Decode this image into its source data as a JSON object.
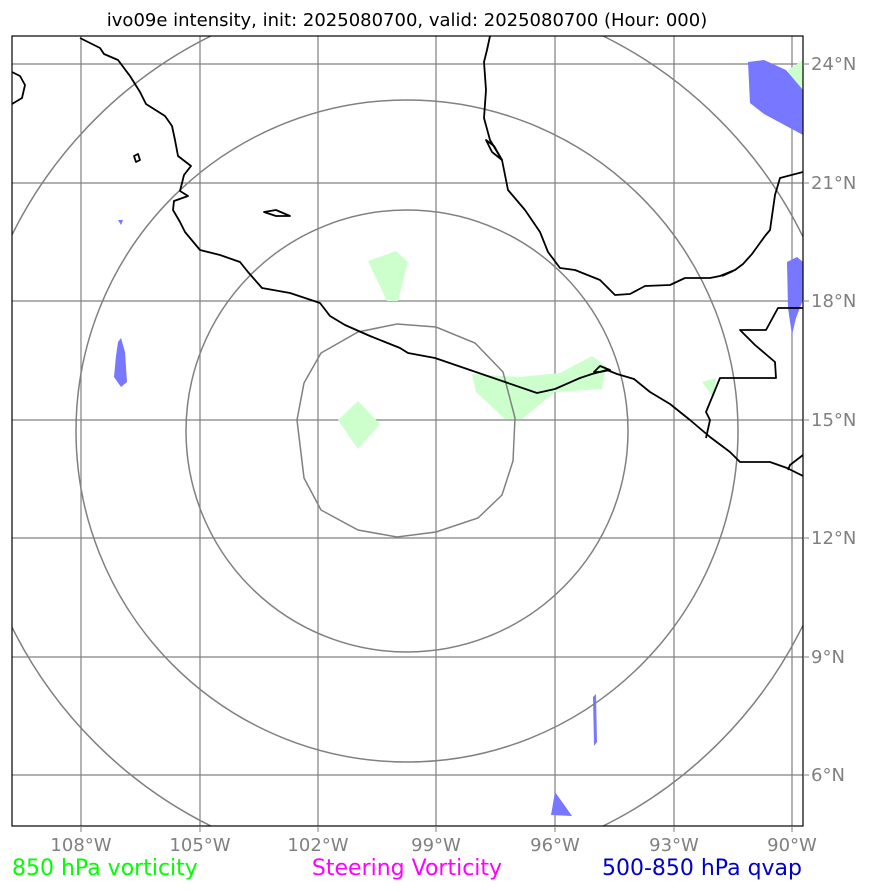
{
  "title": "ivo09e intensity, init: 2025080700, valid: 2025080700 (Hour: 000)",
  "map": {
    "lon_range": [
      -109.8,
      -89.8
    ],
    "lat_range": [
      4.8,
      24.8
    ],
    "lon_ticks": [
      "108°W",
      "105°W",
      "102°W",
      "99°W",
      "96°W",
      "93°W",
      "90°W"
    ],
    "lat_ticks": [
      "24°N",
      "21°N",
      "18°N",
      "15°N",
      "12°N",
      "9°N",
      "6°N"
    ],
    "colors": {
      "grid": "#808080",
      "coastline": "#000000",
      "rings": "#808080",
      "vorticity_850": "#ccffcc",
      "qvap": "#7777ff"
    },
    "ring_center": {
      "lon": -100.0,
      "lat": 15.0
    },
    "ring_radii_deg": [
      3,
      6,
      9,
      12
    ]
  },
  "legend": {
    "vorticity": {
      "label": "850 hPa vorticity",
      "color": "#00ff00"
    },
    "steering": {
      "label": "Steering Vorticity",
      "color": "#ff00ff"
    },
    "qvap": {
      "label": "500-850 hPa qvap",
      "color": "#0000cc"
    }
  }
}
